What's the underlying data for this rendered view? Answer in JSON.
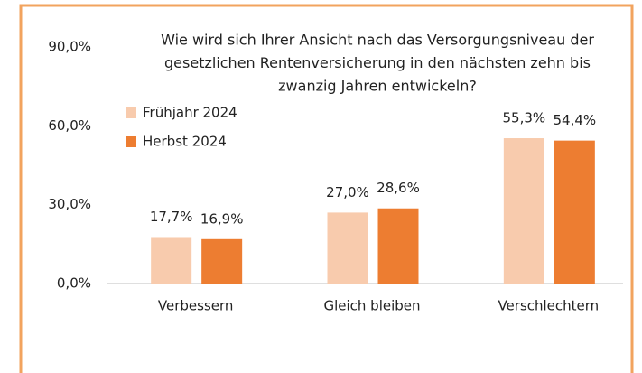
{
  "chart_data": {
    "type": "bar",
    "title": [
      "Wie wird sich Ihrer Ansicht nach das Versorgungsniveau der",
      "gesetzlichen Rentenversicherung in den nächsten zehn bis",
      "zwanzig Jahren entwickeln?"
    ],
    "categories": [
      "Verbessern",
      "Gleich bleiben",
      "Verschlechtern"
    ],
    "series": [
      {
        "name": "Frühjahr 2024",
        "color": "#f8cbad",
        "values": [
          17.7,
          27.0,
          55.3
        ],
        "value_labels": [
          "17,7%",
          "27,0%",
          "55,3%"
        ]
      },
      {
        "name": "Herbst 2024",
        "color": "#ed7d31",
        "values": [
          16.9,
          28.6,
          54.4
        ],
        "value_labels": [
          "16,9%",
          "28,6%",
          "54,4%"
        ]
      }
    ],
    "ylim": [
      0,
      90
    ],
    "yticks": [
      {
        "value": 0,
        "label": "0,0%"
      },
      {
        "value": 30,
        "label": "30,0%"
      },
      {
        "value": 60,
        "label": "60,0%"
      },
      {
        "value": 90,
        "label": "90,0%"
      }
    ],
    "legend": "top-left"
  }
}
